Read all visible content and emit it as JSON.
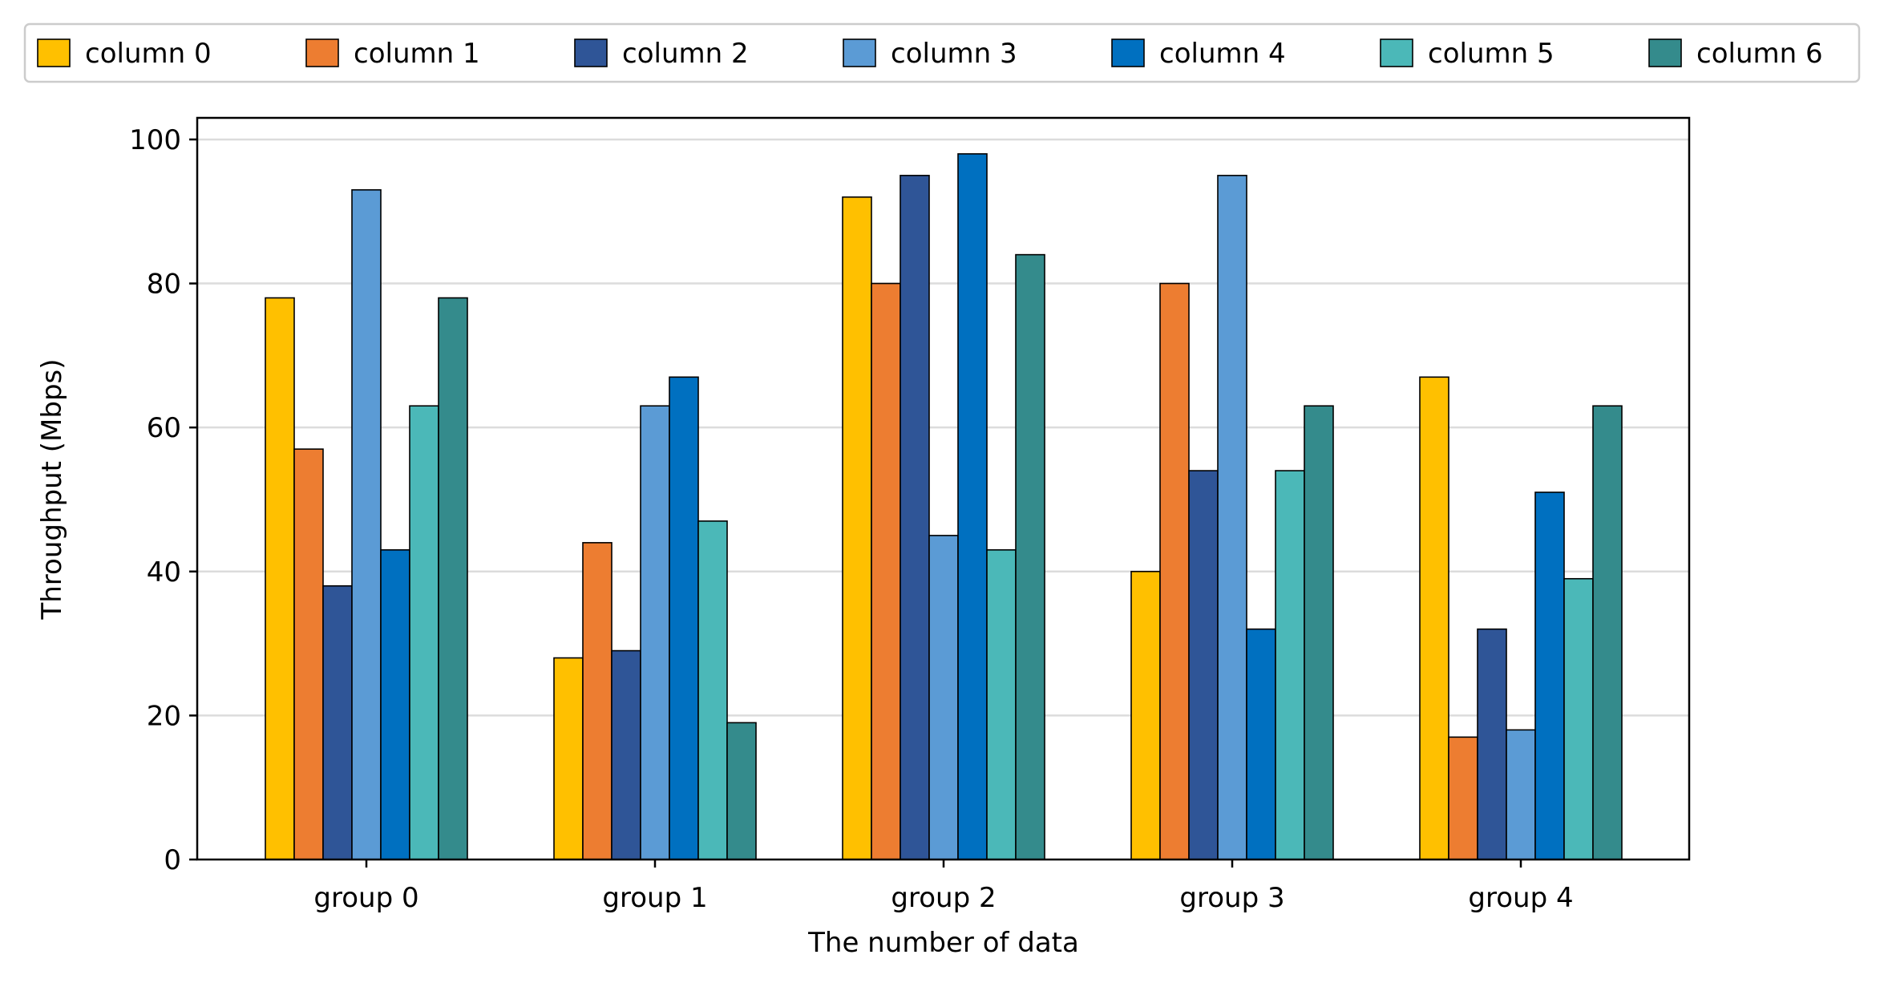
{
  "chart_data": {
    "type": "bar",
    "title": "",
    "xlabel": "The number of data",
    "ylabel": "Throughput (Mbps)",
    "categories": [
      "group 0",
      "group 1",
      "group 2",
      "group 3",
      "group 4"
    ],
    "ylim": [
      0,
      103
    ],
    "yticks": [
      0,
      20,
      40,
      60,
      80,
      100
    ],
    "grid": "horizontal",
    "legend_position": "top",
    "series": [
      {
        "name": "column 0",
        "color": "#FFC000",
        "values": [
          78,
          28,
          92,
          40,
          67
        ]
      },
      {
        "name": "column 1",
        "color": "#ED7D31",
        "values": [
          57,
          44,
          80,
          80,
          17
        ]
      },
      {
        "name": "column 2",
        "color": "#2F5597",
        "values": [
          38,
          29,
          95,
          54,
          32
        ]
      },
      {
        "name": "column 3",
        "color": "#5B9BD5",
        "values": [
          93,
          63,
          45,
          95,
          18
        ]
      },
      {
        "name": "column 4",
        "color": "#0070C0",
        "values": [
          43,
          67,
          98,
          32,
          51
        ]
      },
      {
        "name": "column 5",
        "color": "#4BB8B8",
        "values": [
          63,
          47,
          43,
          54,
          39
        ]
      },
      {
        "name": "column 6",
        "color": "#348B8C",
        "values": [
          78,
          19,
          84,
          63,
          63
        ]
      }
    ]
  }
}
